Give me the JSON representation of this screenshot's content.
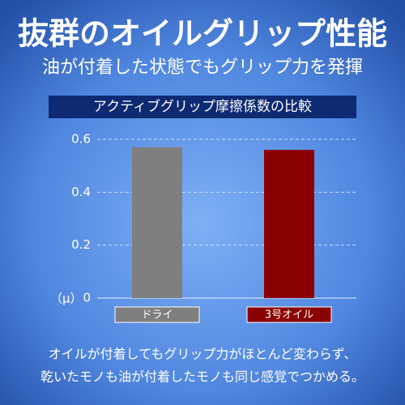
{
  "header": {
    "title": "抜群のオイルグリップ性能",
    "subtitle": "油が付着した状態でもグリップ力を発揮"
  },
  "chart_data": {
    "type": "bar",
    "title": "アクティブグリップ摩擦係数の比較",
    "y_label": "（μ）",
    "categories": [
      "ドライ",
      "3号オイル"
    ],
    "values": [
      0.57,
      0.56
    ],
    "colors": [
      "#7f7f7f",
      "#8b0000"
    ],
    "ylim": [
      0,
      0.6
    ],
    "yticks": [
      0,
      0.2,
      0.4,
      0.6
    ],
    "grid": true
  },
  "footer": {
    "lines": [
      "オイルが付着してもグリップ力がほとんど変わらず、",
      "乾いたモノも油が付着したモノも同じ感覚でつかめる。"
    ]
  }
}
